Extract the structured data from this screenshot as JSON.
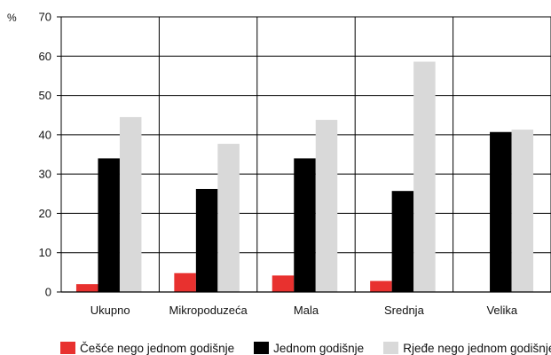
{
  "chart_data": {
    "type": "bar",
    "unit_label": "%",
    "ylim": [
      0,
      70
    ],
    "yticks": [
      0,
      10,
      20,
      30,
      40,
      50,
      60,
      70
    ],
    "grid": true,
    "legend_position": "bottom",
    "categories": [
      "Ukupno",
      "Mikropoduzeća",
      "Mala",
      "Srednja",
      "Velika"
    ],
    "series": [
      {
        "name": "Češće nego jednom godišnje",
        "color": "#e8312f",
        "values": [
          2,
          4.8,
          4.2,
          2.8,
          null
        ]
      },
      {
        "name": "Jednom godišnje",
        "color": "#000000",
        "values": [
          34,
          26.2,
          34,
          25.7,
          40.7
        ]
      },
      {
        "name": "Rjeđe nego jednom godišnje",
        "color": "#d9d9d9",
        "values": [
          44.5,
          37.7,
          43.8,
          58.6,
          41.3
        ]
      }
    ]
  }
}
